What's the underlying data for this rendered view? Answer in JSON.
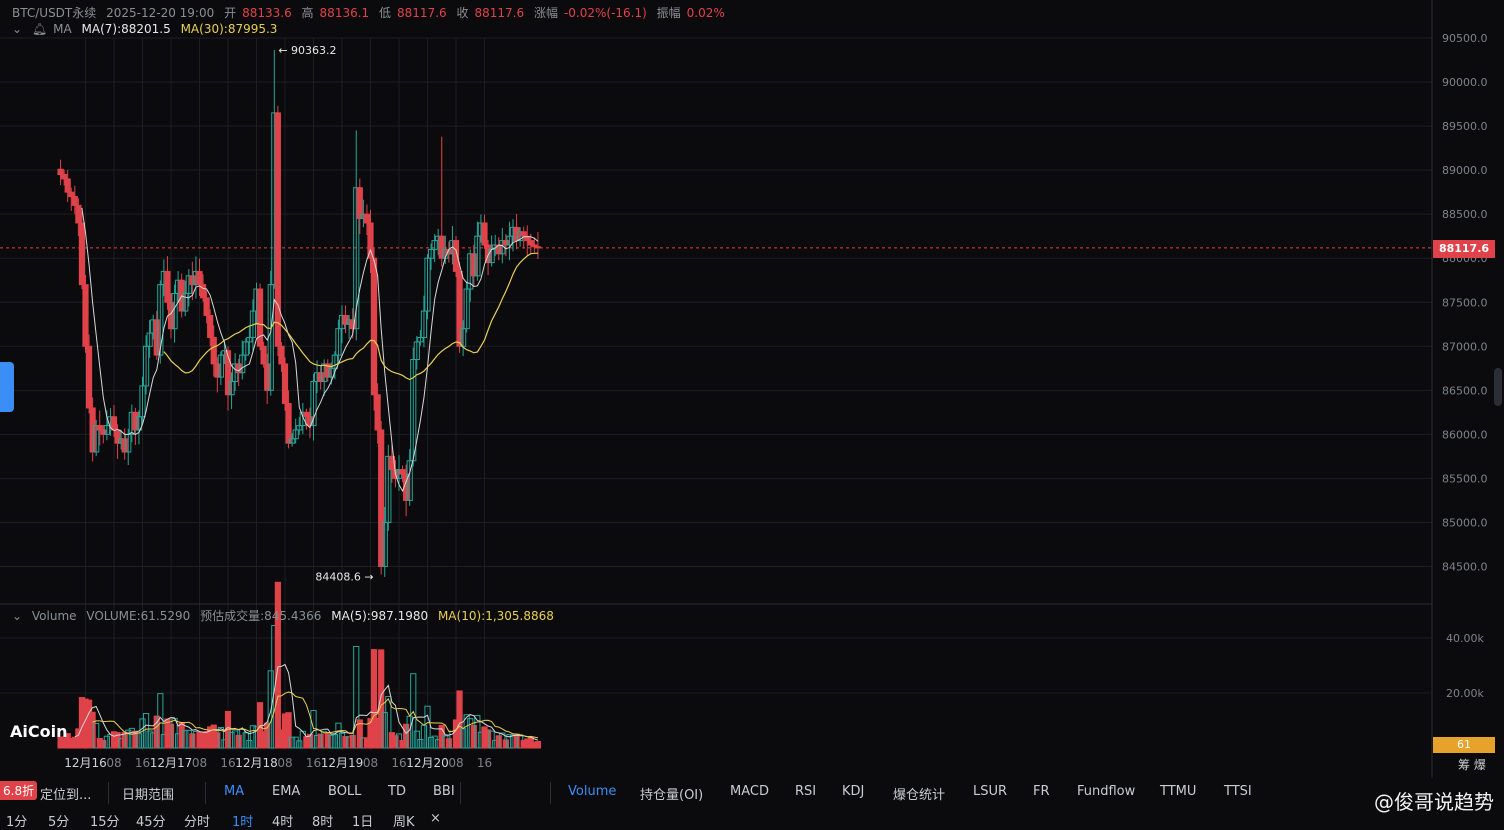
{
  "header": {
    "symbol": "BTC/USDT永续",
    "datetime": "2025-12-20 19:00",
    "open_label": "开",
    "open": "88133.6",
    "high_label": "高",
    "high": "88136.1",
    "low_label": "低",
    "low": "88117.6",
    "close_label": "收",
    "close": "88117.6",
    "change_label": "涨幅",
    "change": "-0.02%(-16.1)",
    "amp_label": "振幅",
    "amp": "0.02%"
  },
  "ma_row": {
    "label": "MA",
    "ma7": "MA(7):88201.5",
    "ma30": "MA(30):87995.3"
  },
  "vol_row": {
    "label": "Volume",
    "volume": "VOLUME:61.5290",
    "est": "预估成交量:845.4366",
    "ma5": "MA(5):987.1980",
    "ma10": "MA(10):1,305.8868"
  },
  "price_tag": "88117.6",
  "vol_tag": "61",
  "logo": "AiCoin",
  "watermark": "@俊哥说趋势",
  "corner_labels": {
    "a": "筹",
    "b": "爆"
  },
  "discount_badge": "6.8折",
  "toolbar": [
    {
      "label": "定位到...",
      "active": false
    },
    {
      "label": "日期范围",
      "active": false
    },
    {
      "label": "MA",
      "active": true
    },
    {
      "label": "EMA",
      "active": false
    },
    {
      "label": "BOLL",
      "active": false
    },
    {
      "label": "TD",
      "active": false
    },
    {
      "label": "BBI",
      "active": false
    },
    {
      "label": "Volume",
      "active": true
    },
    {
      "label": "持仓量(OI)",
      "active": false
    },
    {
      "label": "MACD",
      "active": false
    },
    {
      "label": "RSI",
      "active": false
    },
    {
      "label": "KDJ",
      "active": false
    },
    {
      "label": "爆仓统计",
      "active": false
    },
    {
      "label": "LSUR",
      "active": false
    },
    {
      "label": "FR",
      "active": false
    },
    {
      "label": "Fundflow",
      "active": false
    },
    {
      "label": "TTMU",
      "active": false
    },
    {
      "label": "TTSI",
      "active": false
    }
  ],
  "timeframes": [
    {
      "label": "1分",
      "active": false
    },
    {
      "label": "5分",
      "active": false
    },
    {
      "label": "15分",
      "active": false
    },
    {
      "label": "45分",
      "active": false
    },
    {
      "label": "分时",
      "active": false
    },
    {
      "label": "1时",
      "active": true
    },
    {
      "label": "4时",
      "active": false
    },
    {
      "label": "8时",
      "active": false
    },
    {
      "label": "1日",
      "active": false
    },
    {
      "label": "周K",
      "active": false
    },
    {
      "label": "×",
      "active": false
    }
  ],
  "colors": {
    "up": "#26a69a",
    "down": "#e0424a",
    "ma7": "#d8d8d8",
    "ma30": "#e8cf54",
    "grid": "#1c1e22"
  },
  "chart_data": {
    "type": "candlestick",
    "price_axis": {
      "ticks": [
        84500,
        85000,
        85500,
        86000,
        86500,
        87000,
        87500,
        88000,
        88500,
        89000,
        89500,
        90000,
        90500
      ],
      "tick_labels": [
        "84500.0",
        "85000.0",
        "85500.0",
        "86000.0",
        "86500.0",
        "87000.0",
        "87500.0",
        "88000.0",
        "88500.0",
        "89000.0",
        "89500.0",
        "90000.0",
        "90500.0"
      ]
    },
    "volume_axis": {
      "ticks": [
        20000,
        40000
      ],
      "tick_labels": [
        "20.00k",
        "40.00k"
      ]
    },
    "x_labels": [
      "12月16",
      "08",
      "16",
      "12月17",
      "08",
      "16",
      "12月18",
      "08",
      "16",
      "12月19",
      "08",
      "16",
      "12月20",
      "08",
      "16"
    ],
    "x_label_hours": [
      0,
      8,
      16,
      24,
      32,
      40,
      48,
      56,
      64,
      72,
      80,
      88,
      96,
      104,
      112
    ],
    "annotations": [
      {
        "text": "90363.2",
        "value": 90363.2,
        "hour": 53
      },
      {
        "text": "84408.6",
        "value": 84408.6,
        "hour": 82
      }
    ],
    "current_price": 88117.6,
    "key_closes": [
      [
        -7,
        88950
      ],
      [
        -6,
        88900
      ],
      [
        -5,
        88750
      ],
      [
        -4,
        88700
      ],
      [
        -3,
        88600
      ],
      [
        -2,
        88400
      ],
      [
        -1,
        87700
      ],
      [
        0,
        87000
      ],
      [
        1,
        86300
      ],
      [
        2,
        85800
      ],
      [
        3,
        86100
      ],
      [
        4,
        86050
      ],
      [
        5,
        86000
      ],
      [
        6,
        86100
      ],
      [
        7,
        86200
      ],
      [
        8,
        86050
      ],
      [
        9,
        85900
      ],
      [
        10,
        85950
      ],
      [
        11,
        85800
      ],
      [
        12,
        86000
      ],
      [
        13,
        86250
      ],
      [
        14,
        86050
      ],
      [
        15,
        86200
      ],
      [
        16,
        86550
      ],
      [
        17,
        87000
      ],
      [
        18,
        87150
      ],
      [
        19,
        87300
      ],
      [
        20,
        86900
      ],
      [
        21,
        87700
      ],
      [
        22,
        87850
      ],
      [
        23,
        87500
      ],
      [
        24,
        87200
      ],
      [
        25,
        87600
      ],
      [
        26,
        87750
      ],
      [
        27,
        87400
      ],
      [
        28,
        87600
      ],
      [
        29,
        87800
      ],
      [
        30,
        87700
      ],
      [
        31,
        87850
      ],
      [
        32,
        87700
      ],
      [
        33,
        87550
      ],
      [
        34,
        87350
      ],
      [
        35,
        87100
      ],
      [
        36,
        86800
      ],
      [
        37,
        86650
      ],
      [
        38,
        86900
      ],
      [
        39,
        86950
      ],
      [
        40,
        86450
      ],
      [
        41,
        86600
      ],
      [
        42,
        86800
      ],
      [
        43,
        86700
      ],
      [
        44,
        86900
      ],
      [
        45,
        87050
      ],
      [
        46,
        87100
      ],
      [
        47,
        87400
      ],
      [
        48,
        87650
      ],
      [
        49,
        87000
      ],
      [
        50,
        86800
      ],
      [
        51,
        86500
      ],
      [
        52,
        87700
      ],
      [
        53,
        89650
      ],
      [
        54,
        87000
      ],
      [
        55,
        86800
      ],
      [
        56,
        86350
      ],
      [
        57,
        85900
      ],
      [
        58,
        85950
      ],
      [
        59,
        86050
      ],
      [
        60,
        86100
      ],
      [
        61,
        86250
      ],
      [
        62,
        86200
      ],
      [
        63,
        86100
      ],
      [
        64,
        86600
      ],
      [
        65,
        86700
      ],
      [
        66,
        86600
      ],
      [
        67,
        86800
      ],
      [
        68,
        86650
      ],
      [
        69,
        86750
      ],
      [
        70,
        86900
      ],
      [
        71,
        87200
      ],
      [
        72,
        87350
      ],
      [
        73,
        87250
      ],
      [
        74,
        87300
      ],
      [
        75,
        87200
      ],
      [
        76,
        88800
      ],
      [
        77,
        88450
      ],
      [
        78,
        88500
      ],
      [
        79,
        88400
      ],
      [
        80,
        88000
      ],
      [
        81,
        86450
      ],
      [
        82,
        86050
      ],
      [
        83,
        84500
      ],
      [
        84,
        85000
      ],
      [
        85,
        85750
      ],
      [
        86,
        85600
      ],
      [
        87,
        85500
      ],
      [
        88,
        85600
      ],
      [
        89,
        85550
      ],
      [
        90,
        85250
      ],
      [
        91,
        85700
      ],
      [
        92,
        86850
      ],
      [
        93,
        87050
      ],
      [
        94,
        87100
      ],
      [
        95,
        87400
      ],
      [
        96,
        88000
      ],
      [
        97,
        88100
      ],
      [
        98,
        88200
      ],
      [
        99,
        88250
      ],
      [
        100,
        88000
      ],
      [
        101,
        88100
      ],
      [
        102,
        88050
      ],
      [
        103,
        88200
      ],
      [
        104,
        87850
      ],
      [
        105,
        87000
      ],
      [
        106,
        87200
      ],
      [
        107,
        87650
      ],
      [
        108,
        88050
      ],
      [
        109,
        87800
      ],
      [
        110,
        88250
      ],
      [
        111,
        88400
      ],
      [
        112,
        88150
      ],
      [
        113,
        87950
      ],
      [
        114,
        88100
      ],
      [
        115,
        88150
      ],
      [
        116,
        88050
      ],
      [
        117,
        88200
      ],
      [
        118,
        88150
      ],
      [
        119,
        88250
      ],
      [
        120,
        88350
      ],
      [
        121,
        88200
      ],
      [
        122,
        88300
      ],
      [
        123,
        88250
      ],
      [
        124,
        88200
      ],
      [
        125,
        88150
      ],
      [
        126,
        88130
      ],
      [
        127,
        88117.6
      ]
    ]
  }
}
